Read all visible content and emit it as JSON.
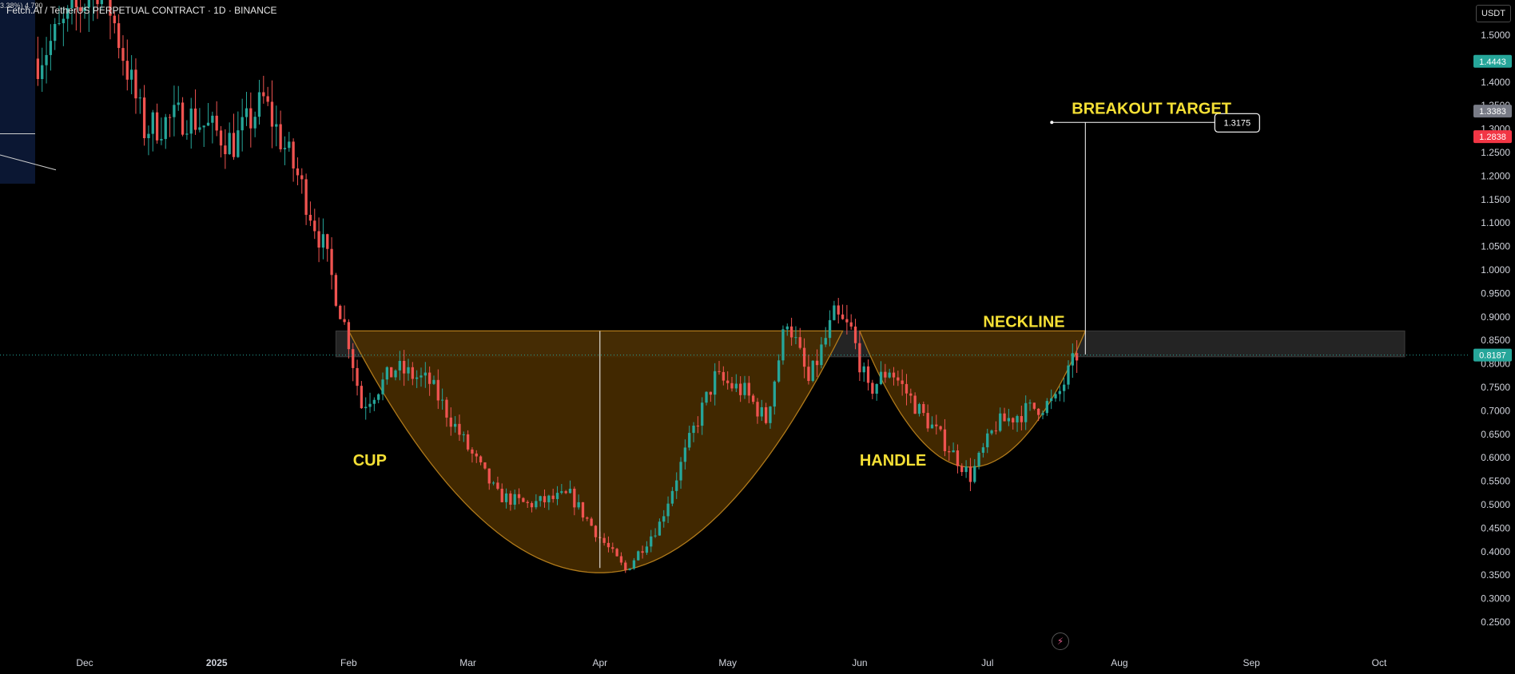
{
  "header": {
    "title": "Fetch.AI / TetherUS PERPETUAL CONTRACT · 1D · BINANCE",
    "left_fragment": "3.38%) 4.790"
  },
  "currency_label": "USDT",
  "colors": {
    "background": "#000000",
    "up": "#26a69a",
    "down": "#ef5350",
    "pattern_fill": "#4a2e00",
    "pattern_stroke": "#b07a1a",
    "neckline_band": "#2a2a2a",
    "annotation": "#f5e035",
    "current_price": "#26a69a",
    "badge_green": "#26a69a",
    "badge_gray": "#787b86",
    "badge_red": "#f23645"
  },
  "chart_data": {
    "type": "candlestick",
    "symbol": "Fetch.AI / TetherUS PERPETUAL CONTRACT",
    "interval": "1D",
    "exchange": "BINANCE",
    "y_axis": {
      "ylim": [
        0.24,
        1.555
      ],
      "ticks": [
        "0.2500",
        "0.3000",
        "0.3500",
        "0.4000",
        "0.4500",
        "0.5000",
        "0.5500",
        "0.6000",
        "0.6500",
        "0.7000",
        "0.7500",
        "0.8000",
        "0.8500",
        "0.9000",
        "0.9500",
        "1.0000",
        "1.0500",
        "1.1000",
        "1.1500",
        "1.2000",
        "1.2500",
        "1.3000",
        "1.3500",
        "1.4000",
        "1.4500",
        "1.5000"
      ],
      "tick_values": [
        0.25,
        0.3,
        0.35,
        0.4,
        0.45,
        0.5,
        0.55,
        0.6,
        0.65,
        0.7,
        0.75,
        0.8,
        0.85,
        0.9,
        0.95,
        1.0,
        1.05,
        1.1,
        1.15,
        1.2,
        1.25,
        1.3,
        1.35,
        1.4,
        1.45,
        1.5
      ]
    },
    "x_axis": {
      "labels": [
        "Dec",
        "2025",
        "Feb",
        "Mar",
        "Apr",
        "May",
        "Jun",
        "Jul",
        "Aug",
        "Sep",
        "Oct"
      ],
      "label_dates": [
        "2024-12-01",
        "2025-01-01",
        "2025-02-01",
        "2025-03-01",
        "2025-04-01",
        "2025-05-01",
        "2025-06-01",
        "2025-07-01",
        "2025-08-01",
        "2025-09-01",
        "2025-10-01"
      ]
    },
    "price_badges": [
      {
        "value": "1.4443",
        "color": "#26a69a"
      },
      {
        "value": "1.3383",
        "color": "#787b86"
      },
      {
        "value": "1.2838",
        "color": "#f23645"
      },
      {
        "value": "0.8187",
        "color": "#26a69a"
      }
    ],
    "current_price": 0.8187,
    "neckline_zone": {
      "top": 0.87,
      "bottom": 0.815,
      "start": "2025-01-29",
      "end": "2025-10-07"
    },
    "cup": {
      "start": "2025-02-01",
      "bottom_date": "2025-04-01",
      "bottom": 0.355,
      "end": "2025-05-28",
      "top": 0.87
    },
    "handle": {
      "start": "2025-06-01",
      "bottom_date": "2025-06-27",
      "bottom": 0.58,
      "end": "2025-07-24",
      "top": 0.87
    },
    "breakout_target": {
      "label": "BREAKOUT TARGET",
      "value": "1.3175",
      "date": "2025-07-24",
      "from": 0.82,
      "to": 1.3175
    },
    "annotations": [
      {
        "text": "CUP",
        "date": "2025-02-02",
        "price": 0.595
      },
      {
        "text": "HANDLE",
        "date": "2025-06-01",
        "price": 0.595
      },
      {
        "text": "NECKLINE",
        "date": "2025-06-30",
        "price": 0.89
      },
      {
        "text": "BREAKOUT TARGET",
        "date": "2025-07-23",
        "price": 1.34
      }
    ],
    "key_path": [
      [
        "2024-11-20",
        1.45
      ],
      [
        "2024-12-05",
        1.62
      ],
      [
        "2024-12-15",
        1.3
      ],
      [
        "2024-12-25",
        1.33
      ],
      [
        "2025-01-05",
        1.27
      ],
      [
        "2025-01-12",
        1.36
      ],
      [
        "2025-01-20",
        1.2
      ],
      [
        "2025-01-26",
        1.05
      ],
      [
        "2025-02-01",
        0.85
      ],
      [
        "2025-02-04",
        0.71
      ],
      [
        "2025-02-12",
        0.79
      ],
      [
        "2025-02-20",
        0.76
      ],
      [
        "2025-03-01",
        0.62
      ],
      [
        "2025-03-08",
        0.52
      ],
      [
        "2025-03-15",
        0.5
      ],
      [
        "2025-03-25",
        0.52
      ],
      [
        "2025-04-01",
        0.43
      ],
      [
        "2025-04-07",
        0.36
      ],
      [
        "2025-04-15",
        0.46
      ],
      [
        "2025-04-23",
        0.66
      ],
      [
        "2025-04-28",
        0.77
      ],
      [
        "2025-05-05",
        0.74
      ],
      [
        "2025-05-10",
        0.68
      ],
      [
        "2025-05-15",
        0.9
      ],
      [
        "2025-05-20",
        0.76
      ],
      [
        "2025-05-26",
        0.9
      ],
      [
        "2025-05-30",
        0.87
      ],
      [
        "2025-06-03",
        0.74
      ],
      [
        "2025-06-08",
        0.79
      ],
      [
        "2025-06-15",
        0.7
      ],
      [
        "2025-06-22",
        0.62
      ],
      [
        "2025-06-27",
        0.56
      ],
      [
        "2025-07-03",
        0.67
      ],
      [
        "2025-07-10",
        0.7
      ],
      [
        "2025-07-17",
        0.72
      ],
      [
        "2025-07-22",
        0.82
      ]
    ]
  }
}
